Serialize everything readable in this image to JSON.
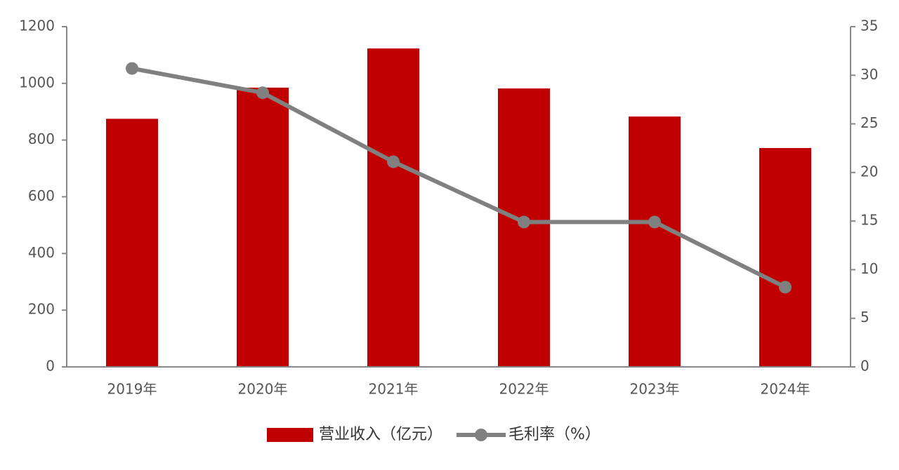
{
  "chart_data": {
    "type": "bar",
    "categories": [
      "2019年",
      "2020年",
      "2021年",
      "2022年",
      "2023年",
      "2024年"
    ],
    "series": [
      {
        "name": "营业收入（亿元）",
        "color": "#c00000",
        "type": "bar",
        "values": [
          875,
          985,
          1123,
          982,
          883,
          772
        ]
      },
      {
        "name": "毛利率（%）",
        "color": "#808080",
        "type": "line",
        "axis": "y2",
        "values": [
          30.7,
          28.2,
          21.1,
          14.9,
          14.9,
          8.2
        ]
      }
    ],
    "ylim": [
      0,
      1200
    ],
    "yticks": [
      0,
      200,
      400,
      600,
      800,
      1000,
      1200
    ],
    "y2lim": [
      0,
      35
    ],
    "y2ticks": [
      0,
      5,
      10,
      15,
      20,
      25,
      30,
      35
    ],
    "grid": false,
    "legend": "bottom"
  }
}
